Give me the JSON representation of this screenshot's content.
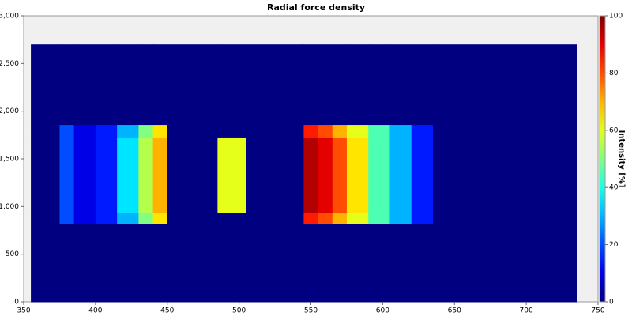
{
  "chart_data": {
    "type": "heatmap",
    "title": "Radial force density",
    "colorbar_label": "Intensity [%]",
    "x_edges": [
      355,
      375,
      385,
      400,
      415,
      430,
      440,
      450,
      485,
      505,
      545,
      555,
      565,
      575,
      590,
      605,
      620,
      635,
      735
    ],
    "y_edges": [
      0,
      820,
      940,
      1450,
      1720,
      1860,
      2700
    ],
    "z": [
      [
        0,
        0,
        0,
        0,
        0,
        0,
        0,
        0,
        0,
        0,
        0,
        0,
        0,
        0,
        0,
        0,
        0,
        0
      ],
      [
        0,
        20,
        10,
        15,
        30,
        50,
        65,
        0,
        0,
        0,
        85,
        80,
        70,
        60,
        45,
        30,
        15,
        0
      ],
      [
        0,
        20,
        10,
        15,
        35,
        55,
        70,
        0,
        60,
        0,
        95,
        90,
        80,
        65,
        45,
        30,
        15,
        0
      ],
      [
        0,
        20,
        10,
        15,
        35,
        55,
        70,
        0,
        60,
        0,
        95,
        90,
        80,
        65,
        45,
        30,
        15,
        0
      ],
      [
        0,
        20,
        10,
        15,
        30,
        50,
        65,
        0,
        0,
        0,
        85,
        80,
        70,
        60,
        45,
        30,
        15,
        0
      ],
      [
        0,
        0,
        0,
        0,
        0,
        0,
        0,
        0,
        0,
        0,
        0,
        0,
        0,
        0,
        0,
        0,
        0,
        0
      ]
    ],
    "colormap": "jet",
    "xlim": [
      350,
      750
    ],
    "xticks": [
      350,
      400,
      450,
      500,
      550,
      600,
      650,
      700,
      750
    ],
    "ylim": [
      0,
      3000
    ],
    "yticks": [
      0,
      500,
      {
        "value": 1000,
        "label": "1,000"
      },
      {
        "value": 1500,
        "label": "1,500"
      },
      {
        "value": 2000,
        "label": "2,000"
      },
      {
        "value": 2500,
        "label": "2,500"
      },
      {
        "value": 3000,
        "label": "3,000"
      }
    ],
    "zlim": [
      0,
      100
    ],
    "zticks": [
      0,
      20,
      40,
      60,
      80,
      100
    ]
  }
}
